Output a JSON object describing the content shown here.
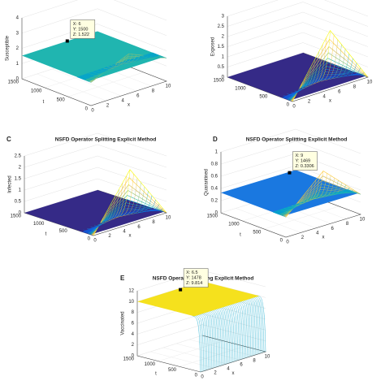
{
  "chart_data": [
    {
      "type": "surface",
      "xlabel": "x",
      "ylabel": "t",
      "zlabel": "Susceptible",
      "xlim": [
        0,
        10
      ],
      "xticks": [
        0,
        2,
        4,
        6,
        8,
        10
      ],
      "ylim": [
        0,
        1500
      ],
      "yticks": [
        0,
        500,
        1000,
        1500
      ],
      "zlim": [
        0,
        4
      ],
      "zticks": [
        0,
        1,
        2,
        3,
        4
      ],
      "color": "#20b5b0",
      "datatip": {
        "x": {
          "value": 6,
          "label": "X: 6"
        },
        "y": {
          "value": 1500,
          "label": "Y: 1500"
        },
        "z": {
          "value": 1.522,
          "label": "Z: 1.522"
        }
      }
    },
    {
      "type": "surface",
      "xlabel": "x",
      "zlabel": "Exposed",
      "xlim": [
        0,
        10
      ],
      "xticks": [
        0,
        2,
        4,
        6,
        8,
        10
      ],
      "ylim": [
        0,
        1500
      ],
      "yticks": [
        0,
        500,
        1000,
        1500
      ],
      "zlim": [
        0,
        3
      ],
      "zticks": [
        0,
        0.5,
        1,
        1.5,
        2,
        2.5,
        3
      ],
      "color": "#352a87"
    },
    {
      "type": "surface",
      "label": "C",
      "title": "NSFD Operator Splitting Explicit Method",
      "xlabel": "x",
      "ylabel": "t",
      "zlabel": "Infected",
      "xlim": [
        0,
        10
      ],
      "xticks": [
        0,
        2,
        4,
        6,
        8,
        10
      ],
      "ylim": [
        0,
        1500
      ],
      "yticks": [
        0,
        500,
        1000,
        1500
      ],
      "zlim": [
        0,
        2.5
      ],
      "zticks": [
        0,
        0.5,
        1,
        1.5,
        2,
        2.5
      ],
      "color": "#352a87"
    },
    {
      "type": "surface",
      "label": "D",
      "title": "NSFD Operator Splitting Explicit Method",
      "xlabel": "x",
      "ylabel": "t",
      "zlabel": "Quarantined",
      "xlim": [
        0,
        10
      ],
      "xticks": [
        0,
        2,
        4,
        6,
        8,
        10
      ],
      "ylim": [
        0,
        1500
      ],
      "yticks": [
        0,
        500,
        1000,
        1500
      ],
      "zlim": [
        0,
        1
      ],
      "zticks": [
        0,
        0.2,
        0.4,
        0.6,
        0.8,
        1
      ],
      "color": "#1a78e0",
      "datatip": {
        "x": {
          "value": 9,
          "label": "X: 9"
        },
        "y": {
          "value": 1469,
          "label": "Y: 1469"
        },
        "z": {
          "value": 0.3306,
          "label": "Z: 0.3306"
        }
      }
    },
    {
      "type": "surface",
      "label": "E",
      "title": "NSFD Operator Splitting Explicit Method",
      "xlabel": "x",
      "ylabel": "t",
      "zlabel": "Vaccinated",
      "xlim": [
        0,
        10
      ],
      "xticks": [
        0,
        2,
        4,
        6,
        8,
        10
      ],
      "ylim": [
        0,
        1500
      ],
      "yticks": [
        0,
        500,
        1000,
        1500
      ],
      "zlim": [
        0,
        12
      ],
      "zticks": [
        0,
        2,
        4,
        6,
        8,
        10,
        12
      ],
      "color": "#f5e11d",
      "datatip": {
        "x": {
          "value": 6.5,
          "label": "X: 6.5"
        },
        "y": {
          "value": 1478,
          "label": "Y: 1478"
        },
        "z": {
          "value": 9.814,
          "label": "Z: 9.814"
        }
      }
    }
  ]
}
